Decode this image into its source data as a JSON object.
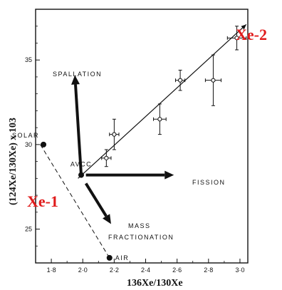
{
  "chart_data": {
    "type": "scatter",
    "xlabel": "136Xe/130Xe",
    "ylabel": "(124Xe/130Xe) x 103",
    "xlim": [
      1.7,
      3.05
    ],
    "ylim": [
      23,
      38
    ],
    "xticks": [
      {
        "value": 1.8,
        "label": "1·8"
      },
      {
        "value": 2.0,
        "label": "2·0"
      },
      {
        "value": 2.2,
        "label": "2·2"
      },
      {
        "value": 2.4,
        "label": "2·4"
      },
      {
        "value": 2.6,
        "label": "2·6"
      },
      {
        "value": 2.8,
        "label": "2·8"
      },
      {
        "value": 3.0,
        "label": "3·0"
      }
    ],
    "yticks": [
      {
        "value": 25,
        "label": "25"
      },
      {
        "value": 30,
        "label": "30"
      },
      {
        "value": 35,
        "label": "35"
      }
    ],
    "measurements": [
      {
        "x": 2.15,
        "y": 29.2,
        "xerr": 0.03,
        "yerr": 0.5
      },
      {
        "x": 2.2,
        "y": 30.6,
        "xerr": 0.03,
        "yerr": 0.9
      },
      {
        "x": 2.49,
        "y": 31.5,
        "xerr": 0.04,
        "yerr": 0.9
      },
      {
        "x": 2.62,
        "y": 33.8,
        "xerr": 0.03,
        "yerr": 0.6
      },
      {
        "x": 2.83,
        "y": 33.8,
        "xerr": 0.05,
        "yerr": 1.5
      },
      {
        "x": 2.98,
        "y": 36.3,
        "xerr": 0.06,
        "yerr": 0.7
      }
    ],
    "reference_points": [
      {
        "id": "solar",
        "label": "SOLAR",
        "x": 1.75,
        "y": 30.0
      },
      {
        "id": "avcc",
        "label": "AVCC",
        "x": 1.99,
        "y": 28.2
      },
      {
        "id": "air",
        "label": "AIR",
        "x": 2.17,
        "y": 23.3
      }
    ],
    "trend_line": {
      "from": [
        1.97,
        28.0
      ],
      "to": [
        3.04,
        37.1
      ]
    },
    "mixing_line": {
      "from": [
        1.73,
        30.0
      ],
      "to": [
        2.17,
        23.3
      ]
    },
    "process_arrows": [
      {
        "label": "SPALLATION",
        "from": [
          1.99,
          28.2
        ],
        "to": [
          1.95,
          34.1
        ]
      },
      {
        "label": "FISSION",
        "from": [
          2.02,
          28.2
        ],
        "to": [
          2.58,
          28.2
        ]
      },
      {
        "label": "MASS\nFRACTIONATION",
        "from": [
          2.02,
          27.7
        ],
        "to": [
          2.18,
          25.3
        ]
      }
    ],
    "highlight_labels": [
      {
        "text": "Xe-1"
      },
      {
        "text": "Xe-2"
      }
    ]
  }
}
